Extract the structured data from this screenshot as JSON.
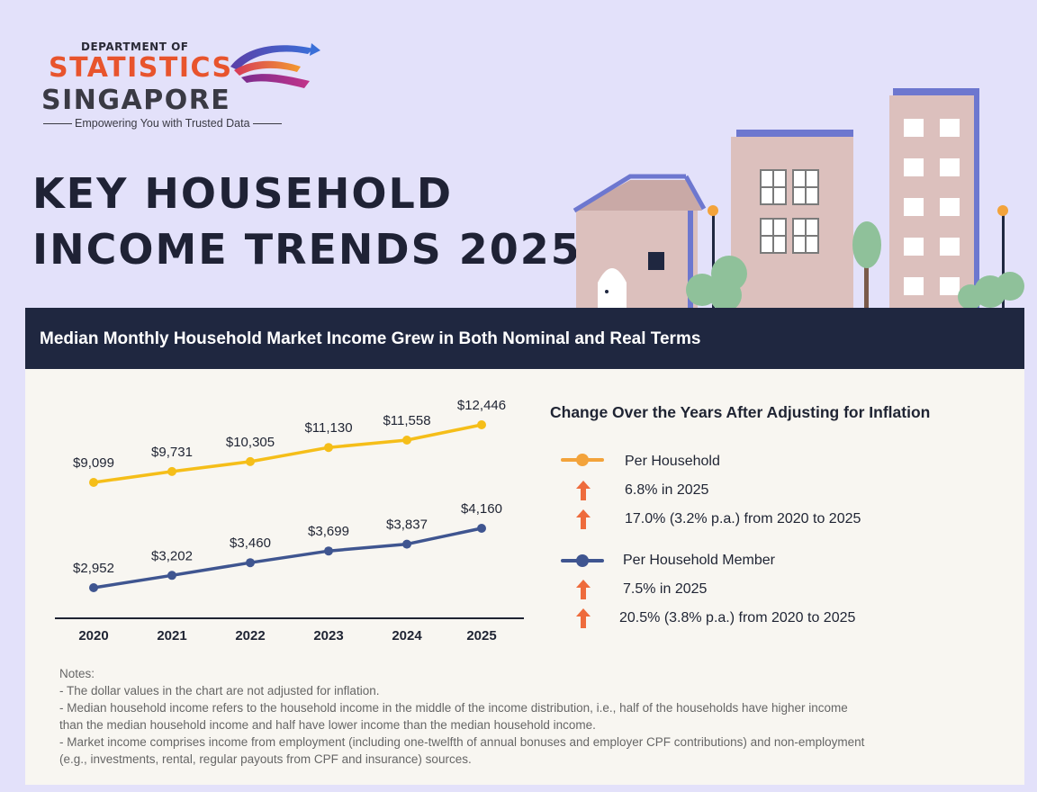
{
  "logo": {
    "dept": "DEPARTMENT OF",
    "line1": "STATISTICS",
    "line2": "SINGAPORE",
    "tagline": "Empowering You with Trusted Data"
  },
  "title": {
    "line1": "KEY HOUSEHOLD",
    "line2": "INCOME TRENDS 2025"
  },
  "banner": "Median Monthly Household Market Income Grew in Both Nominal and Real Terms",
  "colors": {
    "household": "#f5be19",
    "member": "#3f5590",
    "arrow": "#ee6b3c",
    "banner": "#1f2740"
  },
  "chart_data": {
    "type": "line",
    "categories": [
      "2020",
      "2021",
      "2022",
      "2023",
      "2024",
      "2025"
    ],
    "series": [
      {
        "name": "Per Household",
        "values": [
          9099,
          9731,
          10305,
          11130,
          11558,
          12446
        ],
        "labels": [
          "$9,099",
          "$9,731",
          "$10,305",
          "$11,130",
          "$11,558",
          "$12,446"
        ]
      },
      {
        "name": "Per Household Member",
        "values": [
          2952,
          3202,
          3460,
          3699,
          3837,
          4160
        ],
        "labels": [
          "$2,952",
          "$3,202",
          "$3,460",
          "$3,699",
          "$3,837",
          "$4,160"
        ]
      }
    ],
    "title": "",
    "xlabel": "",
    "ylabel": ""
  },
  "side": {
    "title": "Change Over the Years After Adjusting for Inflation",
    "household": {
      "label": "Per Household",
      "stat1": "6.8% in 2025",
      "stat2": "17.0% (3.2% p.a.) from 2020 to 2025"
    },
    "member": {
      "label": "Per Household Member",
      "stat1": "7.5% in 2025",
      "stat2": "20.5% (3.8% p.a.) from 2020 to 2025"
    }
  },
  "notes": [
    "Notes:",
    "- The dollar values in the chart are not adjusted for inflation.",
    "- Median household income refers to the household income in the middle of the income distribution, i.e., half of the households have higher income",
    "than the median household income and half have lower income than the median household income.",
    "- Market income comprises income from employment (including one-twelfth of annual bonuses and employer CPF contributions) and non-employment",
    "(e.g., investments, rental, regular payouts from CPF and insurance) sources."
  ]
}
